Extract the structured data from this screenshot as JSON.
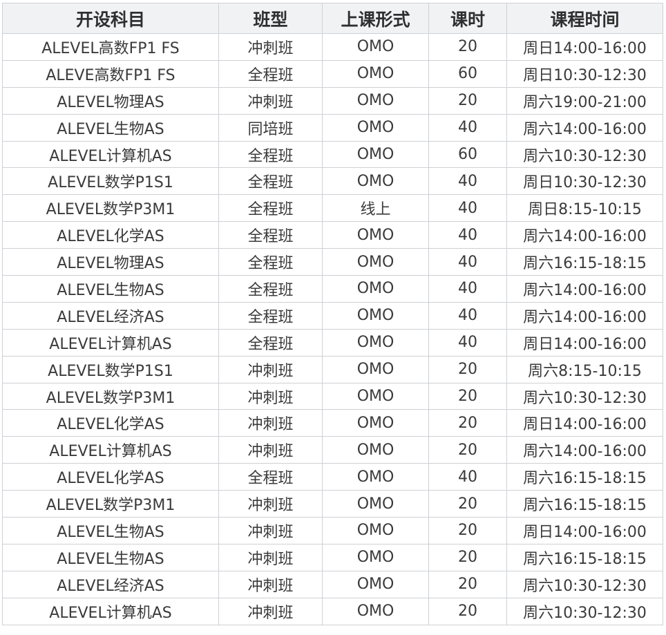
{
  "table": {
    "headers": [
      "开设科目",
      "班型",
      "上课形式",
      "课时",
      "课程时间"
    ],
    "rows": [
      [
        "ALEVEL高数FP1 FS",
        "冲刺班",
        "OMO",
        "20",
        "周日14:00-16:00"
      ],
      [
        "ALEVE高数FP1 FS",
        "全程班",
        "OMO",
        "60",
        "周日10:30-12:30"
      ],
      [
        "ALEVEL物理AS",
        "冲刺班",
        "OMO",
        "20",
        "周六19:00-21:00"
      ],
      [
        "ALEVEL生物AS",
        "同培班",
        "OMO",
        "40",
        "周六14:00-16:00"
      ],
      [
        "ALEVEL计算机AS",
        "全程班",
        "OMO",
        "60",
        "周六10:30-12:30"
      ],
      [
        "ALEVEL数学P1S1",
        "全程班",
        "OMO",
        "40",
        "周日10:30-12:30"
      ],
      [
        "ALEVEL数学P3M1",
        "全程班",
        "线上",
        "40",
        "周日8:15-10:15"
      ],
      [
        "ALEVEL化学AS",
        "全程班",
        "OMO",
        "40",
        "周六14:00-16:00"
      ],
      [
        "ALEVEL物理AS",
        "全程班",
        "OMO",
        "40",
        "周六16:15-18:15"
      ],
      [
        "ALEVEL生物AS",
        "全程班",
        "OMO",
        "40",
        "周六14:00-16:00"
      ],
      [
        "ALEVEL经济AS",
        "全程班",
        "OMO",
        "40",
        "周六14:00-16:00"
      ],
      [
        "ALEVEL计算机AS",
        "全程班",
        "OMO",
        "40",
        "周日14:00-16:00"
      ],
      [
        "ALEVEL数学P1S1",
        "冲刺班",
        "OMO",
        "20",
        "周六8:15-10:15"
      ],
      [
        "ALEVEL数学P3M1",
        "冲刺班",
        "OMO",
        "20",
        "周六10:30-12:30"
      ],
      [
        "ALEVEL化学AS",
        "冲刺班",
        "OMO",
        "20",
        "周日14:00-16:00"
      ],
      [
        "ALEVEL计算机AS",
        "冲刺班",
        "OMO",
        "20",
        "周六14:00-16:00"
      ],
      [
        "ALEVEL化学AS",
        "全程班",
        "OMO",
        "40",
        "周六16:15-18:15"
      ],
      [
        "ALEVEL数学P3M1",
        "冲刺班",
        "OMO",
        "20",
        "周六16:15-18:15"
      ],
      [
        "ALEVEL生物AS",
        "冲刺班",
        "OMO",
        "20",
        "周日14:00-16:00"
      ],
      [
        "ALEVEL生物AS",
        "冲刺班",
        "OMO",
        "20",
        "周六16:15-18:15"
      ],
      [
        "ALEVEL经济AS",
        "冲刺班",
        "OMO",
        "20",
        "周六10:30-12:30"
      ],
      [
        "ALEVEL计算机AS",
        "冲刺班",
        "OMO",
        "20",
        "周六10:30-12:30"
      ]
    ]
  }
}
